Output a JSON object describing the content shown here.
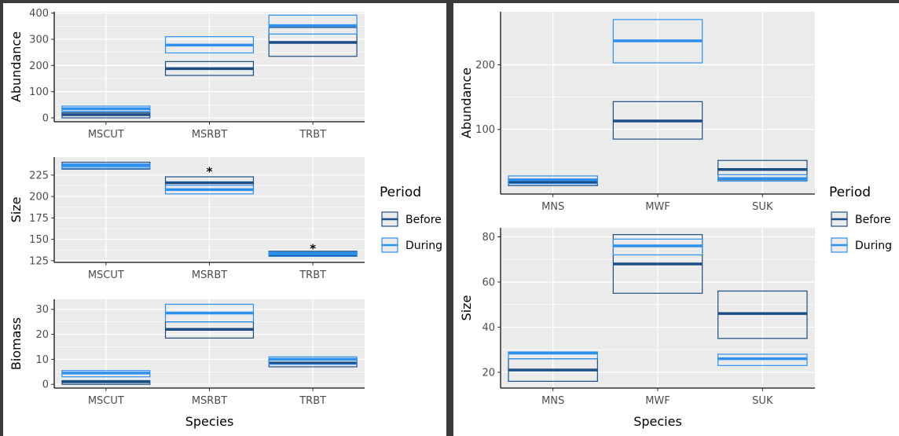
{
  "colors": {
    "before": "#1c4e86",
    "during": "#2e90ee",
    "panel_bg": "#ebebeb",
    "grid": "#ffffff"
  },
  "legend": {
    "title": "Period",
    "entries": [
      {
        "label": "Before",
        "key": "before"
      },
      {
        "label": "During",
        "key": "during"
      }
    ]
  },
  "chart_data": [
    {
      "type": "box",
      "id": "L1",
      "panel": "left",
      "categories": [
        "MSCUT",
        "MSRBT",
        "TRBT"
      ],
      "ylabel": "Abundance",
      "xlabel": "",
      "yticks": [
        0,
        100,
        200,
        300,
        400
      ],
      "ylim": [
        -15,
        405
      ],
      "series": [
        {
          "name": "Before",
          "key": "before",
          "boxes": [
            {
              "low": 0,
              "mid": 12,
              "high": 20
            },
            {
              "low": 162,
              "mid": 188,
              "high": 215
            },
            {
              "low": 235,
              "mid": 288,
              "high": 345
            }
          ]
        },
        {
          "name": "During",
          "key": "during",
          "boxes": [
            {
              "low": 25,
              "mid": 35,
              "high": 45
            },
            {
              "low": 248,
              "mid": 278,
              "high": 310
            },
            {
              "low": 320,
              "mid": 352,
              "high": 392
            }
          ]
        }
      ],
      "annotations": []
    },
    {
      "type": "box",
      "id": "L2",
      "panel": "left",
      "categories": [
        "MSCUT",
        "MSRBT",
        "TRBT"
      ],
      "ylabel": "Size",
      "xlabel": "",
      "yticks": [
        125,
        150,
        175,
        200,
        225
      ],
      "ylim": [
        123,
        246
      ],
      "series": [
        {
          "name": "Before",
          "key": "before",
          "boxes": [
            {
              "low": 232,
              "mid": 236,
              "high": 240
            },
            {
              "low": 208,
              "mid": 216,
              "high": 223
            },
            {
              "low": 130,
              "mid": 132,
              "high": 136
            }
          ]
        },
        {
          "name": "During",
          "key": "during",
          "boxes": [
            {
              "low": 233,
              "mid": 236,
              "high": 238
            },
            {
              "low": 203,
              "mid": 208,
              "high": 213
            },
            {
              "low": 130,
              "mid": 133,
              "high": 135
            }
          ]
        }
      ],
      "annotations": [
        {
          "category": "MSRBT",
          "text": "*",
          "y": 232
        },
        {
          "category": "TRBT",
          "text": "*",
          "y": 142
        }
      ]
    },
    {
      "type": "box",
      "id": "L3",
      "panel": "left",
      "categories": [
        "MSCUT",
        "MSRBT",
        "TRBT"
      ],
      "ylabel": "Biomass",
      "xlabel": "Species",
      "yticks": [
        0,
        10,
        20,
        30
      ],
      "ylim": [
        -1.5,
        34
      ],
      "series": [
        {
          "name": "Before",
          "key": "before",
          "boxes": [
            {
              "low": 0,
              "mid": 1,
              "high": 1.5
            },
            {
              "low": 18.5,
              "mid": 22,
              "high": 25
            },
            {
              "low": 7,
              "mid": 8.5,
              "high": 10
            }
          ]
        },
        {
          "name": "During",
          "key": "during",
          "boxes": [
            {
              "low": 3,
              "mid": 4.5,
              "high": 5.5
            },
            {
              "low": 25,
              "mid": 28.5,
              "high": 32
            },
            {
              "low": 8,
              "mid": 10,
              "high": 11
            }
          ]
        }
      ],
      "annotations": []
    },
    {
      "type": "box",
      "id": "R1",
      "panel": "right",
      "categories": [
        "MNS",
        "MWF",
        "SUK"
      ],
      "ylabel": "Abundance",
      "xlabel": "",
      "yticks": [
        100,
        200
      ],
      "ylim": [
        0,
        282
      ],
      "series": [
        {
          "name": "Before",
          "key": "before",
          "boxes": [
            {
              "low": 13,
              "mid": 18,
              "high": 23
            },
            {
              "low": 85,
              "mid": 113,
              "high": 143
            },
            {
              "low": 22,
              "mid": 38,
              "high": 52
            }
          ]
        },
        {
          "name": "During",
          "key": "during",
          "boxes": [
            {
              "low": 16,
              "mid": 22,
              "high": 28
            },
            {
              "low": 203,
              "mid": 237,
              "high": 270
            },
            {
              "low": 20,
              "mid": 24,
              "high": 30
            }
          ]
        }
      ],
      "annotations": []
    },
    {
      "type": "box",
      "id": "R2",
      "panel": "right",
      "categories": [
        "MNS",
        "MWF",
        "SUK"
      ],
      "ylabel": "Size",
      "xlabel": "Species",
      "yticks": [
        20,
        40,
        60,
        80
      ],
      "ylim": [
        13,
        84
      ],
      "series": [
        {
          "name": "Before",
          "key": "before",
          "boxes": [
            {
              "low": 16,
              "mid": 21,
              "high": 26
            },
            {
              "low": 55,
              "mid": 68,
              "high": 81
            },
            {
              "low": 35,
              "mid": 46,
              "high": 56
            }
          ]
        },
        {
          "name": "During",
          "key": "during",
          "boxes": [
            {
              "low": 26,
              "mid": 28.5,
              "high": 29
            },
            {
              "low": 72,
              "mid": 76,
              "high": 79
            },
            {
              "low": 23,
              "mid": 26,
              "high": 28
            }
          ]
        }
      ],
      "annotations": []
    }
  ]
}
